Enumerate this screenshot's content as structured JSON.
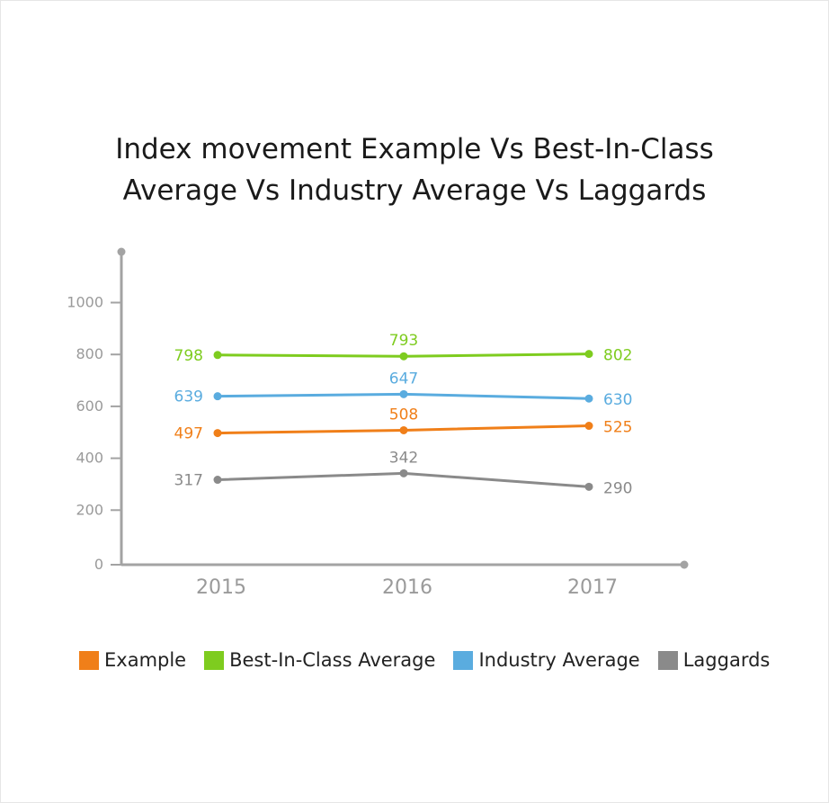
{
  "chart_data": {
    "type": "line",
    "title_lines": [
      "Index movement Example Vs Best-In-Class",
      "Average Vs Industry Average Vs Laggards"
    ],
    "categories": [
      "2015",
      "2016",
      "2017"
    ],
    "y_ticks": [
      "0",
      "200",
      "400",
      "600",
      "800",
      "1000"
    ],
    "ylim": [
      0,
      1200
    ],
    "grid": false,
    "legend_position": "bottom",
    "series": [
      {
        "name": "Example",
        "color": "#f07f19",
        "values": [
          497,
          508,
          525
        ],
        "labels": [
          "497",
          "508",
          "525"
        ]
      },
      {
        "name": "Best-In-Class Average",
        "color": "#7ecc1f",
        "values": [
          798,
          793,
          802
        ],
        "labels": [
          "798",
          "793",
          "802"
        ]
      },
      {
        "name": "Industry Average",
        "color": "#5aacdf",
        "values": [
          639,
          647,
          630
        ],
        "labels": [
          "639",
          "647",
          "630"
        ]
      },
      {
        "name": "Laggards",
        "color": "#8a8a8a",
        "values": [
          317,
          342,
          290
        ],
        "labels": [
          "317",
          "342",
          "290"
        ]
      }
    ],
    "axis_color": "#a3a3a3",
    "tick_label_color": "#9a9a9a"
  }
}
